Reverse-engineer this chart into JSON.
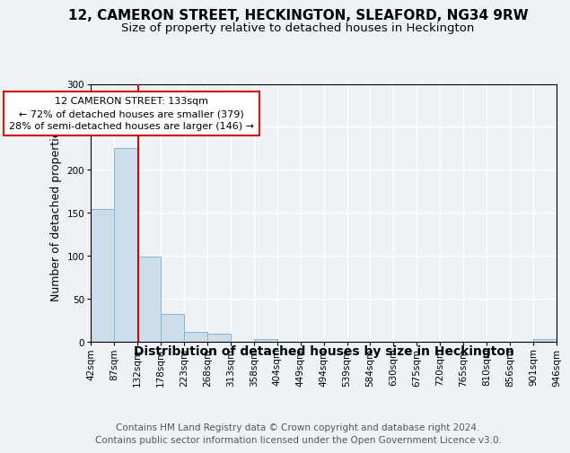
{
  "title": "12, CAMERON STREET, HECKINGTON, SLEAFORD, NG34 9RW",
  "subtitle": "Size of property relative to detached houses in Heckington",
  "xlabel": "Distribution of detached houses by size in Heckington",
  "ylabel": "Number of detached properties",
  "bin_labels": [
    "42sqm",
    "87sqm",
    "132sqm",
    "178sqm",
    "223sqm",
    "268sqm",
    "313sqm",
    "358sqm",
    "404sqm",
    "449sqm",
    "494sqm",
    "539sqm",
    "584sqm",
    "630sqm",
    "675sqm",
    "720sqm",
    "765sqm",
    "810sqm",
    "856sqm",
    "901sqm",
    "946sqm"
  ],
  "bar_values": [
    154,
    225,
    99,
    32,
    12,
    9,
    0,
    3,
    0,
    0,
    0,
    0,
    0,
    0,
    0,
    0,
    0,
    0,
    0,
    3,
    0
  ],
  "bar_color": "#ccdce8",
  "bar_edge_color": "#8ab4ce",
  "property_line_color": "#cc0000",
  "annotation_text": "12 CAMERON STREET: 133sqm\n← 72% of detached houses are smaller (379)\n28% of semi-detached houses are larger (146) →",
  "annotation_box_color": "white",
  "annotation_box_edge_color": "#cc0000",
  "ylim": [
    0,
    300
  ],
  "yticks": [
    0,
    50,
    100,
    150,
    200,
    250,
    300
  ],
  "footer_text": "Contains HM Land Registry data © Crown copyright and database right 2024.\nContains public sector information licensed under the Open Government Licence v3.0.",
  "title_fontsize": 11,
  "subtitle_fontsize": 9.5,
  "xlabel_fontsize": 10,
  "ylabel_fontsize": 9,
  "tick_fontsize": 7.5,
  "footer_fontsize": 7.5,
  "bg_color": "#eef2f7",
  "plot_bg_color": "#eef2f7"
}
